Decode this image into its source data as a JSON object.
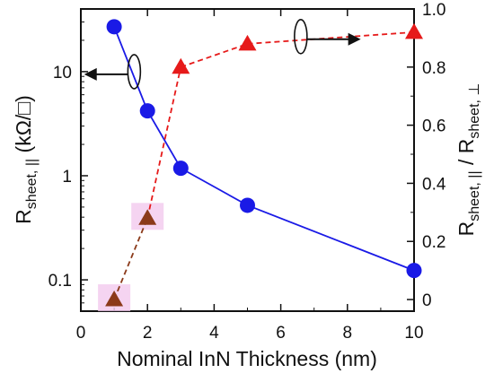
{
  "chart_data": {
    "type": "line",
    "x_axis": {
      "label": "Nominal InN Thickness (nm)",
      "range": [
        0,
        10
      ],
      "ticks": [
        0,
        2,
        4,
        6,
        8,
        10
      ],
      "tick_labels": [
        "0",
        "2",
        "4",
        "6",
        "8",
        "10"
      ]
    },
    "y_left": {
      "label_main": "R",
      "label_sub": "sheet, ||",
      "label_unit": " (kΩ/□)",
      "scale": "log",
      "range": [
        0.05,
        40
      ],
      "ticks": [
        0.1,
        1,
        10
      ],
      "tick_labels": [
        "0.1",
        "1",
        "10"
      ]
    },
    "y_right": {
      "label_parts": [
        "R",
        "sheet, ||",
        " / R",
        "sheet, ⊥"
      ],
      "scale": "linear",
      "range": [
        -0.04,
        1.0
      ],
      "ticks": [
        0,
        0.2,
        0.4,
        0.6,
        0.8,
        1.0
      ],
      "tick_labels": [
        "0",
        "0.2",
        "0.4",
        "0.6",
        "0.8",
        "1.0"
      ]
    },
    "series": [
      {
        "axis": "left",
        "marker": "circle",
        "line": "solid",
        "color": "#1a1ae6",
        "points": [
          {
            "x": 1,
            "y": 27
          },
          {
            "x": 2,
            "y": 4.2
          },
          {
            "x": 3,
            "y": 1.18
          },
          {
            "x": 5,
            "y": 0.52
          },
          {
            "x": 10,
            "y": 0.123
          }
        ]
      },
      {
        "axis": "right",
        "marker": "triangle",
        "line": "dashed",
        "points": [
          {
            "x": 1,
            "y": 0.0,
            "color": "#8b3a1a",
            "highlight": true
          },
          {
            "x": 2,
            "y": 0.28,
            "color": "#8b3a1a",
            "highlight": true
          },
          {
            "x": 3,
            "y": 0.8,
            "color": "#e61a1a"
          },
          {
            "x": 5,
            "y": 0.88,
            "color": "#e61a1a"
          },
          {
            "x": 10,
            "y": 0.92,
            "color": "#e61a1a"
          }
        ],
        "segment_colors": [
          "#8b3a1a",
          "#e61a1a",
          "#e61a1a",
          "#e61a1a"
        ],
        "highlight_color": "#f3c9ee"
      }
    ],
    "annotations": [
      {
        "type": "ellipse-arrow",
        "x": 1.6,
        "y_axis": "left",
        "y": 10,
        "direction": "left",
        "target_x": 0.1
      },
      {
        "type": "ellipse-arrow",
        "x": 6.6,
        "y_axis": "right",
        "y": 0.905,
        "direction": "right",
        "target_x": 8.4
      }
    ]
  }
}
